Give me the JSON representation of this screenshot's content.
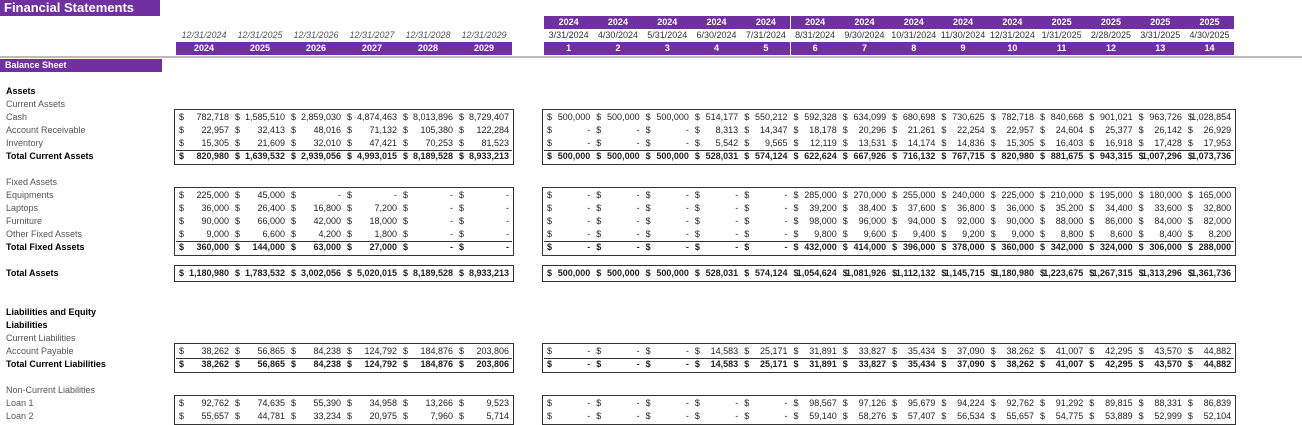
{
  "title": "Financial Statements",
  "section": "Balance Sheet",
  "currency_symbol": "$",
  "annual": {
    "dates": [
      "12/31/2024",
      "12/31/2025",
      "12/31/2026",
      "12/31/2027",
      "12/31/2028",
      "12/31/2029"
    ],
    "years": [
      "2024",
      "2025",
      "2026",
      "2027",
      "2028",
      "2029"
    ]
  },
  "monthly": {
    "years": [
      "2024",
      "2024",
      "2024",
      "2024",
      "2024",
      "2024",
      "2024",
      "2024",
      "2024",
      "2024",
      "2025",
      "2025",
      "2025",
      "2025"
    ],
    "dates": [
      "3/31/2024",
      "4/30/2024",
      "5/31/2024",
      "6/30/2024",
      "7/31/2024",
      "8/31/2024",
      "9/30/2024",
      "10/31/2024",
      "11/30/2024",
      "12/31/2024",
      "1/31/2025",
      "2/28/2025",
      "3/31/2025",
      "4/30/2025"
    ],
    "periods": [
      "1",
      "2",
      "3",
      "4",
      "5",
      "6",
      "7",
      "8",
      "9",
      "10",
      "11",
      "12",
      "13",
      "14"
    ]
  },
  "rows": [
    {
      "label": "Assets",
      "bold": true,
      "row": 0
    },
    {
      "label": "Current Assets",
      "bold": false,
      "row": 1
    },
    {
      "label": "Cash",
      "bold": false,
      "row": 2,
      "annual": [
        "782,718",
        "1,585,510",
        "2,859,030",
        "4,874,463",
        "8,013,896",
        "8,729,407"
      ],
      "monthly": [
        "500,000",
        "500,000",
        "500,000",
        "514,177",
        "550,212",
        "592,328",
        "634,099",
        "680,698",
        "730,625",
        "782,718",
        "840,668",
        "901,021",
        "963,726",
        "1,028,854"
      ]
    },
    {
      "label": "Account Receivable",
      "bold": false,
      "row": 3,
      "annual": [
        "22,957",
        "32,413",
        "48,016",
        "71,132",
        "105,380",
        "122,284"
      ],
      "monthly": [
        "-",
        "-",
        "-",
        "8,313",
        "14,347",
        "18,178",
        "20,296",
        "21,261",
        "22,254",
        "22,957",
        "24,604",
        "25,377",
        "26,142",
        "26,929"
      ]
    },
    {
      "label": "Inventory",
      "bold": false,
      "row": 4,
      "annual": [
        "15,305",
        "21,609",
        "32,010",
        "47,421",
        "70,253",
        "81,523"
      ],
      "monthly": [
        "-",
        "-",
        "-",
        "5,542",
        "9,565",
        "12,119",
        "13,531",
        "14,174",
        "14,836",
        "15,305",
        "16,403",
        "16,918",
        "17,428",
        "17,953"
      ]
    },
    {
      "label": "Total Current Assets",
      "bold": true,
      "row": 5,
      "annual": [
        "820,980",
        "1,639,532",
        "2,939,056",
        "4,993,015",
        "8,189,528",
        "8,933,213"
      ],
      "monthly": [
        "500,000",
        "500,000",
        "500,000",
        "528,031",
        "574,124",
        "622,624",
        "667,926",
        "716,132",
        "767,715",
        "820,980",
        "881,675",
        "943,315",
        "1,007,296",
        "1,073,736"
      ]
    },
    {
      "label": "Fixed Assets",
      "bold": false,
      "row": 7
    },
    {
      "label": "Equipments",
      "bold": false,
      "row": 8,
      "annual": [
        "225,000",
        "45,000",
        "-",
        "-",
        "-",
        "-"
      ],
      "monthly": [
        "-",
        "-",
        "-",
        "-",
        "-",
        "285,000",
        "270,000",
        "255,000",
        "240,000",
        "225,000",
        "210,000",
        "195,000",
        "180,000",
        "165,000"
      ]
    },
    {
      "label": "Laptops",
      "bold": false,
      "row": 9,
      "annual": [
        "36,000",
        "26,400",
        "16,800",
        "7,200",
        "-",
        "-"
      ],
      "monthly": [
        "-",
        "-",
        "-",
        "-",
        "-",
        "39,200",
        "38,400",
        "37,600",
        "36,800",
        "36,000",
        "35,200",
        "34,400",
        "33,600",
        "32,800"
      ]
    },
    {
      "label": "Furniture",
      "bold": false,
      "row": 10,
      "annual": [
        "90,000",
        "66,000",
        "42,000",
        "18,000",
        "-",
        "-"
      ],
      "monthly": [
        "-",
        "-",
        "-",
        "-",
        "-",
        "98,000",
        "96,000",
        "94,000",
        "92,000",
        "90,000",
        "88,000",
        "86,000",
        "84,000",
        "82,000"
      ]
    },
    {
      "label": "Other Fixed Assets",
      "bold": false,
      "row": 11,
      "annual": [
        "9,000",
        "6,600",
        "4,200",
        "1,800",
        "-",
        "-"
      ],
      "monthly": [
        "-",
        "-",
        "-",
        "-",
        "-",
        "9,800",
        "9,600",
        "9,400",
        "9,200",
        "9,000",
        "8,800",
        "8,600",
        "8,400",
        "8,200"
      ]
    },
    {
      "label": "Total Fixed Assets",
      "bold": true,
      "row": 12,
      "annual": [
        "360,000",
        "144,000",
        "63,000",
        "27,000",
        "-",
        "-"
      ],
      "monthly": [
        "-",
        "-",
        "-",
        "-",
        "-",
        "432,000",
        "414,000",
        "396,000",
        "378,000",
        "360,000",
        "342,000",
        "324,000",
        "306,000",
        "288,000"
      ]
    },
    {
      "label": "Total Assets",
      "bold": true,
      "row": 14,
      "annual": [
        "1,180,980",
        "1,783,532",
        "3,002,056",
        "5,020,015",
        "8,189,528",
        "8,933,213"
      ],
      "monthly": [
        "500,000",
        "500,000",
        "500,000",
        "528,031",
        "574,124",
        "1,054,624",
        "1,081,926",
        "1,112,132",
        "1,145,715",
        "1,180,980",
        "1,223,675",
        "1,267,315",
        "1,313,296",
        "1,361,736"
      ]
    },
    {
      "label": "Liabilities and Equity",
      "bold": true,
      "row": 17
    },
    {
      "label": "Liabilities",
      "bold": true,
      "row": 18
    },
    {
      "label": "Current Liabilities",
      "bold": false,
      "row": 19
    },
    {
      "label": "Account Payable",
      "bold": false,
      "row": 20,
      "annual": [
        "38,262",
        "56,865",
        "84,238",
        "124,792",
        "184,876",
        "203,806"
      ],
      "monthly": [
        "-",
        "-",
        "-",
        "14,583",
        "25,171",
        "31,891",
        "33,827",
        "35,434",
        "37,090",
        "38,262",
        "41,007",
        "42,295",
        "43,570",
        "44,882"
      ]
    },
    {
      "label": "Total Current Liabilities",
      "bold": true,
      "row": 21,
      "annual": [
        "38,262",
        "56,865",
        "84,238",
        "124,792",
        "184,876",
        "203,806"
      ],
      "monthly": [
        "-",
        "-",
        "-",
        "14,583",
        "25,171",
        "31,891",
        "33,827",
        "35,434",
        "37,090",
        "38,262",
        "41,007",
        "42,295",
        "43,570",
        "44,882"
      ]
    },
    {
      "label": "Non-Current Liabilities",
      "bold": false,
      "row": 23
    },
    {
      "label": "Loan 1",
      "bold": false,
      "row": 24,
      "annual": [
        "92,762",
        "74,635",
        "55,390",
        "34,958",
        "13,266",
        "9,523"
      ],
      "monthly": [
        "-",
        "-",
        "-",
        "-",
        "-",
        "98,567",
        "97,126",
        "95,679",
        "94,224",
        "92,762",
        "91,292",
        "89,815",
        "88,331",
        "86,839"
      ]
    },
    {
      "label": "Loan 2",
      "bold": false,
      "row": 25,
      "annual": [
        "55,657",
        "44,781",
        "33,234",
        "20,975",
        "7,960",
        "5,714"
      ],
      "monthly": [
        "-",
        "-",
        "-",
        "-",
        "-",
        "59,140",
        "58,276",
        "57,407",
        "56,534",
        "55,657",
        "54,775",
        "53,889",
        "52,999",
        "52,104"
      ]
    }
  ]
}
